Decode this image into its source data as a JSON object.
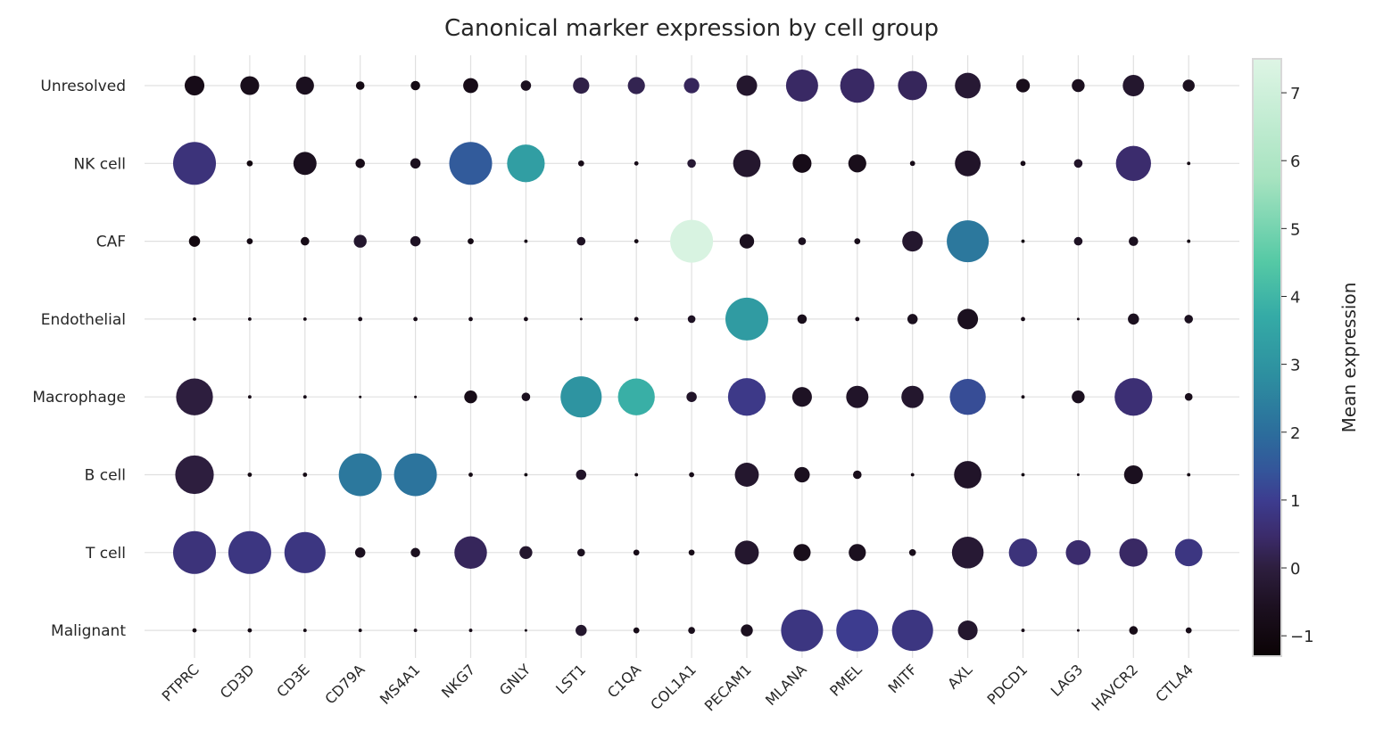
{
  "chart_data": {
    "type": "dotplot",
    "title": "Canonical marker expression by cell group",
    "genes": [
      "PTPRC",
      "CD3D",
      "CD3E",
      "CD79A",
      "MS4A1",
      "NKG7",
      "GNLY",
      "LST1",
      "C1QA",
      "COL1A1",
      "PECAM1",
      "MLANA",
      "PMEL",
      "MITF",
      "AXL",
      "PDCD1",
      "LAG3",
      "HAVCR2",
      "CTLA4"
    ],
    "groups": [
      "Unresolved",
      "NK cell",
      "CAF",
      "Endothelial",
      "Macrophage",
      "B cell",
      "T cell",
      "Malignant"
    ],
    "colorbar": {
      "label": "Mean expression",
      "min": -1.3,
      "max": 7.5,
      "ticks": [
        -1,
        0,
        1,
        2,
        3,
        4,
        5,
        6,
        7
      ],
      "tick_labels": [
        "−1",
        "0",
        "1",
        "2",
        "3",
        "4",
        "5",
        "6",
        "7"
      ]
    },
    "size_encoding": "relative dot size 0-1",
    "values": [
      {
        "group": "Unresolved",
        "expression": [
          -0.8,
          -0.7,
          -0.6,
          -0.9,
          -0.9,
          -0.8,
          -0.6,
          0.1,
          0.2,
          0.3,
          -0.3,
          0.4,
          0.4,
          0.3,
          -0.2,
          -0.7,
          -0.6,
          -0.3,
          -0.6
        ],
        "size": [
          0.46,
          0.44,
          0.42,
          0.2,
          0.22,
          0.35,
          0.24,
          0.38,
          0.4,
          0.36,
          0.48,
          0.75,
          0.8,
          0.68,
          0.6,
          0.32,
          0.3,
          0.5,
          0.28
        ]
      },
      {
        "group": "NK cell",
        "expression": [
          0.7,
          -1.0,
          -0.6,
          -0.8,
          -0.6,
          1.6,
          3.3,
          -0.8,
          -0.8,
          -0.2,
          -0.3,
          -0.8,
          -0.7,
          -0.8,
          -0.4,
          -0.8,
          -0.4,
          0.5,
          -0.9
        ],
        "size": [
          1.0,
          0.14,
          0.54,
          0.22,
          0.24,
          1.0,
          0.88,
          0.14,
          0.1,
          0.2,
          0.64,
          0.44,
          0.42,
          0.12,
          0.6,
          0.12,
          0.2,
          0.82,
          0.08
        ]
      },
      {
        "group": "CAF",
        "expression": [
          -1.0,
          -0.9,
          -0.8,
          -0.3,
          -0.5,
          -0.9,
          -0.8,
          -0.5,
          -0.9,
          7.3,
          -0.6,
          -0.6,
          -0.7,
          -0.3,
          2.3,
          -0.9,
          -0.5,
          -0.6,
          -0.9
        ],
        "size": [
          0.26,
          0.14,
          0.2,
          0.3,
          0.24,
          0.14,
          0.08,
          0.2,
          0.1,
          1.0,
          0.34,
          0.18,
          0.14,
          0.48,
          0.98,
          0.08,
          0.2,
          0.22,
          0.08
        ]
      },
      {
        "group": "Endothelial",
        "expression": [
          -1.0,
          -0.9,
          -0.9,
          -0.8,
          -0.8,
          -0.8,
          -0.8,
          -0.9,
          -0.8,
          -0.5,
          3.2,
          -0.7,
          -0.8,
          -0.6,
          -0.6,
          -0.8,
          -0.9,
          -0.6,
          -0.6
        ],
        "size": [
          0.08,
          0.08,
          0.08,
          0.1,
          0.1,
          0.1,
          0.1,
          0.06,
          0.1,
          0.18,
          1.0,
          0.22,
          0.1,
          0.24,
          0.48,
          0.1,
          0.06,
          0.26,
          0.2
        ]
      },
      {
        "group": "Macrophage",
        "expression": [
          0.0,
          -0.8,
          -0.8,
          -0.9,
          -0.9,
          -0.8,
          -0.6,
          3.0,
          3.8,
          -0.4,
          0.9,
          -0.5,
          -0.4,
          -0.3,
          1.3,
          -0.8,
          -0.6,
          0.6,
          -0.7
        ],
        "size": [
          0.86,
          0.08,
          0.08,
          0.06,
          0.06,
          0.3,
          0.2,
          0.96,
          0.86,
          0.24,
          0.88,
          0.46,
          0.52,
          0.52,
          0.84,
          0.08,
          0.3,
          0.88,
          0.18
        ]
      },
      {
        "group": "B cell",
        "expression": [
          0.0,
          -0.9,
          -0.9,
          2.3,
          2.2,
          -0.9,
          -0.9,
          -0.4,
          -0.9,
          -0.8,
          -0.3,
          -0.6,
          -0.7,
          -0.9,
          -0.4,
          -0.9,
          -0.9,
          -0.6,
          -0.9
        ],
        "size": [
          0.9,
          0.1,
          0.1,
          1.0,
          1.0,
          0.1,
          0.08,
          0.24,
          0.08,
          0.12,
          0.56,
          0.36,
          0.2,
          0.08,
          0.64,
          0.08,
          0.06,
          0.44,
          0.08
        ]
      },
      {
        "group": "T cell",
        "expression": [
          0.7,
          0.8,
          0.8,
          -0.6,
          -0.6,
          0.3,
          -0.3,
          -0.6,
          -0.8,
          -0.8,
          -0.3,
          -0.7,
          -0.6,
          -0.7,
          -0.2,
          0.7,
          0.5,
          0.4,
          0.8
        ],
        "size": [
          1.0,
          1.0,
          0.96,
          0.24,
          0.22,
          0.76,
          0.3,
          0.18,
          0.14,
          0.14,
          0.56,
          0.4,
          0.4,
          0.16,
          0.74,
          0.66,
          0.58,
          0.66,
          0.64
        ]
      },
      {
        "group": "Malignant",
        "expression": [
          -1.0,
          -0.9,
          -0.9,
          -0.9,
          -0.9,
          -0.8,
          -0.8,
          -0.3,
          -0.8,
          -0.7,
          -0.6,
          0.8,
          1.0,
          0.8,
          -0.3,
          -0.8,
          -0.9,
          -0.8,
          -0.8
        ],
        "size": [
          0.1,
          0.1,
          0.08,
          0.08,
          0.08,
          0.08,
          0.06,
          0.26,
          0.14,
          0.16,
          0.28,
          0.98,
          0.98,
          0.96,
          0.46,
          0.08,
          0.06,
          0.2,
          0.14
        ]
      }
    ]
  }
}
